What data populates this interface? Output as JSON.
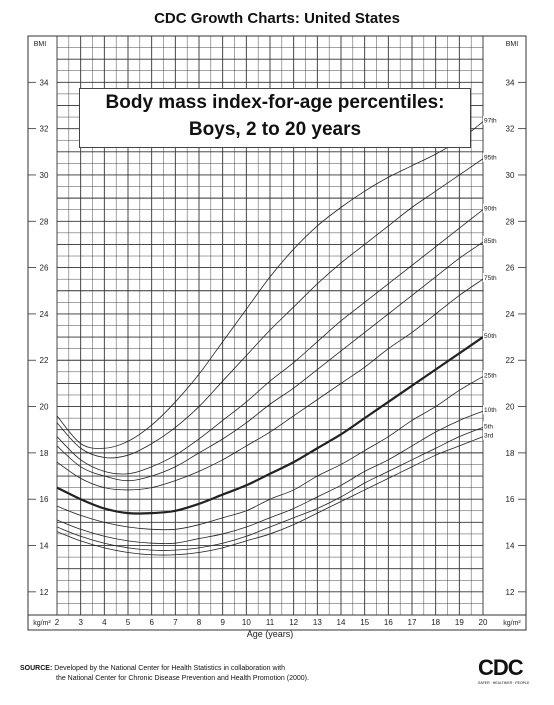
{
  "header": {
    "title": "CDC Growth Charts: United States"
  },
  "chart_data": {
    "type": "line",
    "title": "Body mass index-for-age percentiles:",
    "subtitle": "Boys, 2 to 20 years",
    "xlabel": "Age (years)",
    "ylabel": "BMI",
    "units_label": "kg/m²",
    "xlim": [
      2,
      20
    ],
    "ylim": [
      11,
      36
    ],
    "x_ticks": [
      2,
      3,
      4,
      5,
      6,
      7,
      8,
      9,
      10,
      11,
      12,
      13,
      14,
      15,
      16,
      17,
      18,
      19,
      20
    ],
    "y_ticks": [
      12,
      14,
      16,
      18,
      20,
      22,
      24,
      26,
      28,
      30,
      32,
      34
    ],
    "grid": true,
    "x": [
      2,
      3,
      4,
      5,
      6,
      7,
      8,
      9,
      10,
      11,
      12,
      13,
      14,
      15,
      16,
      17,
      18,
      19,
      20
    ],
    "series": [
      {
        "name": "97th",
        "bold": false,
        "values": [
          19.6,
          18.4,
          18.2,
          18.5,
          19.2,
          20.2,
          21.4,
          22.8,
          24.2,
          25.6,
          26.8,
          27.8,
          28.6,
          29.3,
          29.9,
          30.4,
          30.9,
          31.5,
          32.3
        ]
      },
      {
        "name": "95th",
        "bold": false,
        "values": [
          19.3,
          18.2,
          17.8,
          17.9,
          18.4,
          19.1,
          20.0,
          21.1,
          22.2,
          23.3,
          24.3,
          25.3,
          26.2,
          27.0,
          27.8,
          28.6,
          29.3,
          30.0,
          30.7
        ]
      },
      {
        "name": "90th",
        "bold": false,
        "values": [
          18.7,
          17.7,
          17.2,
          17.1,
          17.4,
          17.9,
          18.6,
          19.4,
          20.2,
          21.1,
          21.9,
          22.8,
          23.7,
          24.5,
          25.3,
          26.1,
          26.9,
          27.7,
          28.5
        ]
      },
      {
        "name": "85th",
        "bold": false,
        "values": [
          18.3,
          17.4,
          17.0,
          16.8,
          17.0,
          17.4,
          18.0,
          18.6,
          19.3,
          20.1,
          20.8,
          21.6,
          22.4,
          23.2,
          24.0,
          24.8,
          25.6,
          26.4,
          27.1
        ]
      },
      {
        "name": "75th",
        "bold": false,
        "values": [
          17.6,
          16.9,
          16.5,
          16.4,
          16.5,
          16.8,
          17.2,
          17.7,
          18.3,
          18.9,
          19.6,
          20.3,
          21.0,
          21.7,
          22.5,
          23.2,
          24.0,
          24.8,
          25.5
        ]
      },
      {
        "name": "50th",
        "bold": true,
        "values": [
          16.5,
          16.0,
          15.6,
          15.4,
          15.4,
          15.5,
          15.8,
          16.2,
          16.6,
          17.1,
          17.6,
          18.2,
          18.8,
          19.5,
          20.2,
          20.9,
          21.6,
          22.3,
          23.0
        ]
      },
      {
        "name": "25th",
        "bold": false,
        "values": [
          15.7,
          15.3,
          15.0,
          14.8,
          14.7,
          14.7,
          14.9,
          15.2,
          15.5,
          16.0,
          16.4,
          17.0,
          17.5,
          18.1,
          18.7,
          19.4,
          20.0,
          20.7,
          21.3
        ]
      },
      {
        "name": "10th",
        "bold": false,
        "values": [
          15.1,
          14.7,
          14.4,
          14.2,
          14.1,
          14.1,
          14.3,
          14.5,
          14.8,
          15.2,
          15.6,
          16.1,
          16.6,
          17.2,
          17.7,
          18.3,
          18.9,
          19.4,
          19.8
        ]
      },
      {
        "name": "5th",
        "bold": false,
        "values": [
          14.8,
          14.4,
          14.1,
          13.9,
          13.8,
          13.8,
          13.9,
          14.1,
          14.4,
          14.8,
          15.2,
          15.6,
          16.1,
          16.7,
          17.2,
          17.7,
          18.2,
          18.7,
          19.1
        ]
      },
      {
        "name": "3rd",
        "bold": false,
        "values": [
          14.6,
          14.2,
          13.9,
          13.7,
          13.6,
          13.6,
          13.7,
          13.9,
          14.2,
          14.5,
          14.9,
          15.4,
          15.9,
          16.4,
          16.9,
          17.4,
          17.9,
          18.3,
          18.7
        ]
      }
    ]
  },
  "source": {
    "label": "SOURCE:",
    "line1": "Developed by the National Center for Health Statistics in collaboration with",
    "line2": "the National Center for Chronic Disease Prevention and Health Promotion (2000)."
  },
  "logo": {
    "text": "CDC",
    "subtext": "SAFER · HEALTHIER · PEOPLE"
  },
  "colors": {
    "grid": "#333333",
    "curve": "#222222",
    "background": "#ffffff"
  }
}
